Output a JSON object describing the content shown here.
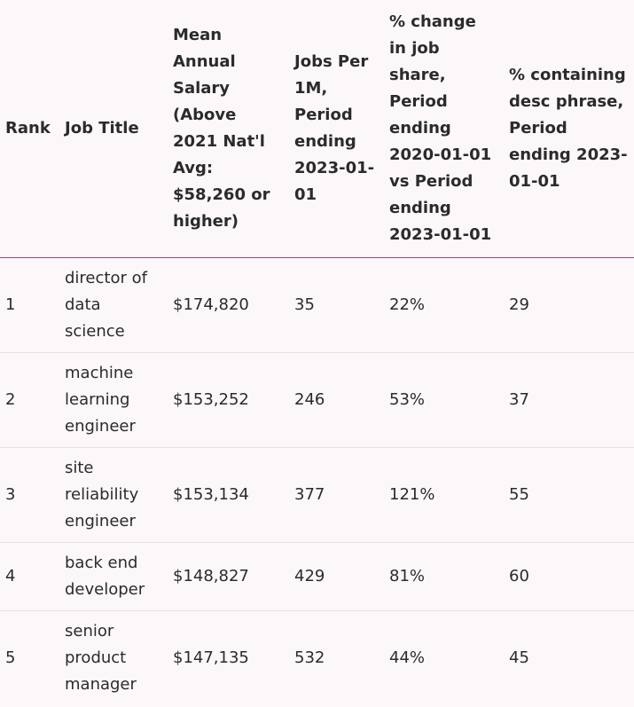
{
  "table": {
    "headers": {
      "rank": "Rank",
      "job_title": "Job Title",
      "salary": "Mean Annual Salary (Above 2021 Nat'l Avg: $58,260 or higher)",
      "jobs": "Jobs Per 1M, Period ending 2023-01-01",
      "change": "% change in job share, Period ending 2020-01-01 vs Period ending 2023-01-01",
      "desc": "% containing desc phrase, Period ending 2023-01-01"
    },
    "rows": [
      {
        "rank": "1",
        "job_title": "director of data science",
        "salary": "$174,820",
        "jobs": "35",
        "change": "22%",
        "desc": "29"
      },
      {
        "rank": "2",
        "job_title": "machine learning engineer",
        "salary": "$153,252",
        "jobs": "246",
        "change": "53%",
        "desc": "37"
      },
      {
        "rank": "3",
        "job_title": "site reliability engineer",
        "salary": "$153,134",
        "jobs": "377",
        "change": "121%",
        "desc": "55"
      },
      {
        "rank": "4",
        "job_title": "back end developer",
        "salary": "$148,827",
        "jobs": "429",
        "change": "81%",
        "desc": "60"
      },
      {
        "rank": "5",
        "job_title": "senior product manager",
        "salary": "$147,135",
        "jobs": "532",
        "change": "44%",
        "desc": "45"
      }
    ]
  }
}
